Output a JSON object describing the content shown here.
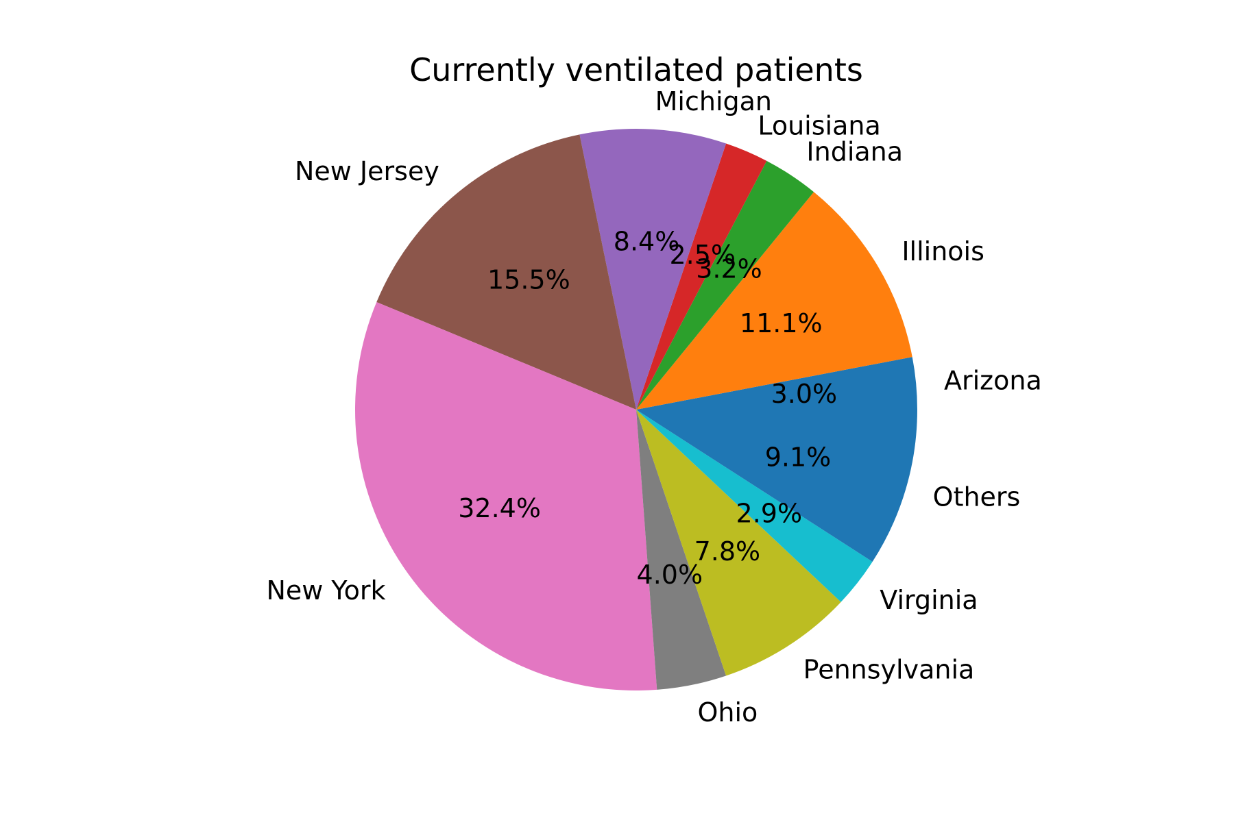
{
  "chart_data": {
    "type": "pie",
    "title": "Currently ventilated patients",
    "start_angle_deg": 0,
    "direction": "counterclockwise",
    "slices": [
      {
        "label": "Arizona",
        "pct_label": "3.0%",
        "value": 3.0,
        "color": "#1f77b4"
      },
      {
        "label": "Illinois",
        "pct_label": "11.1%",
        "value": 11.1,
        "color": "#ff7f0e"
      },
      {
        "label": "Indiana",
        "pct_label": "3.2%",
        "value": 3.2,
        "color": "#2ca02c"
      },
      {
        "label": "Louisiana",
        "pct_label": "2.5%",
        "value": 2.5,
        "color": "#d62728"
      },
      {
        "label": "Michigan",
        "pct_label": "8.4%",
        "value": 8.4,
        "color": "#9467bd"
      },
      {
        "label": "New Jersey",
        "pct_label": "15.5%",
        "value": 15.5,
        "color": "#8c564b"
      },
      {
        "label": "New York",
        "pct_label": "32.4%",
        "value": 32.4,
        "color": "#e377c2"
      },
      {
        "label": "Ohio",
        "pct_label": "4.0%",
        "value": 4.0,
        "color": "#7f7f7f"
      },
      {
        "label": "Pennsylvania",
        "pct_label": "7.8%",
        "value": 7.8,
        "color": "#bcbd22"
      },
      {
        "label": "Virginia",
        "pct_label": "2.9%",
        "value": 2.9,
        "color": "#17becf"
      },
      {
        "label": "Others",
        "pct_label": "9.1%",
        "value": 9.1,
        "color": "#1f77b4"
      }
    ]
  }
}
